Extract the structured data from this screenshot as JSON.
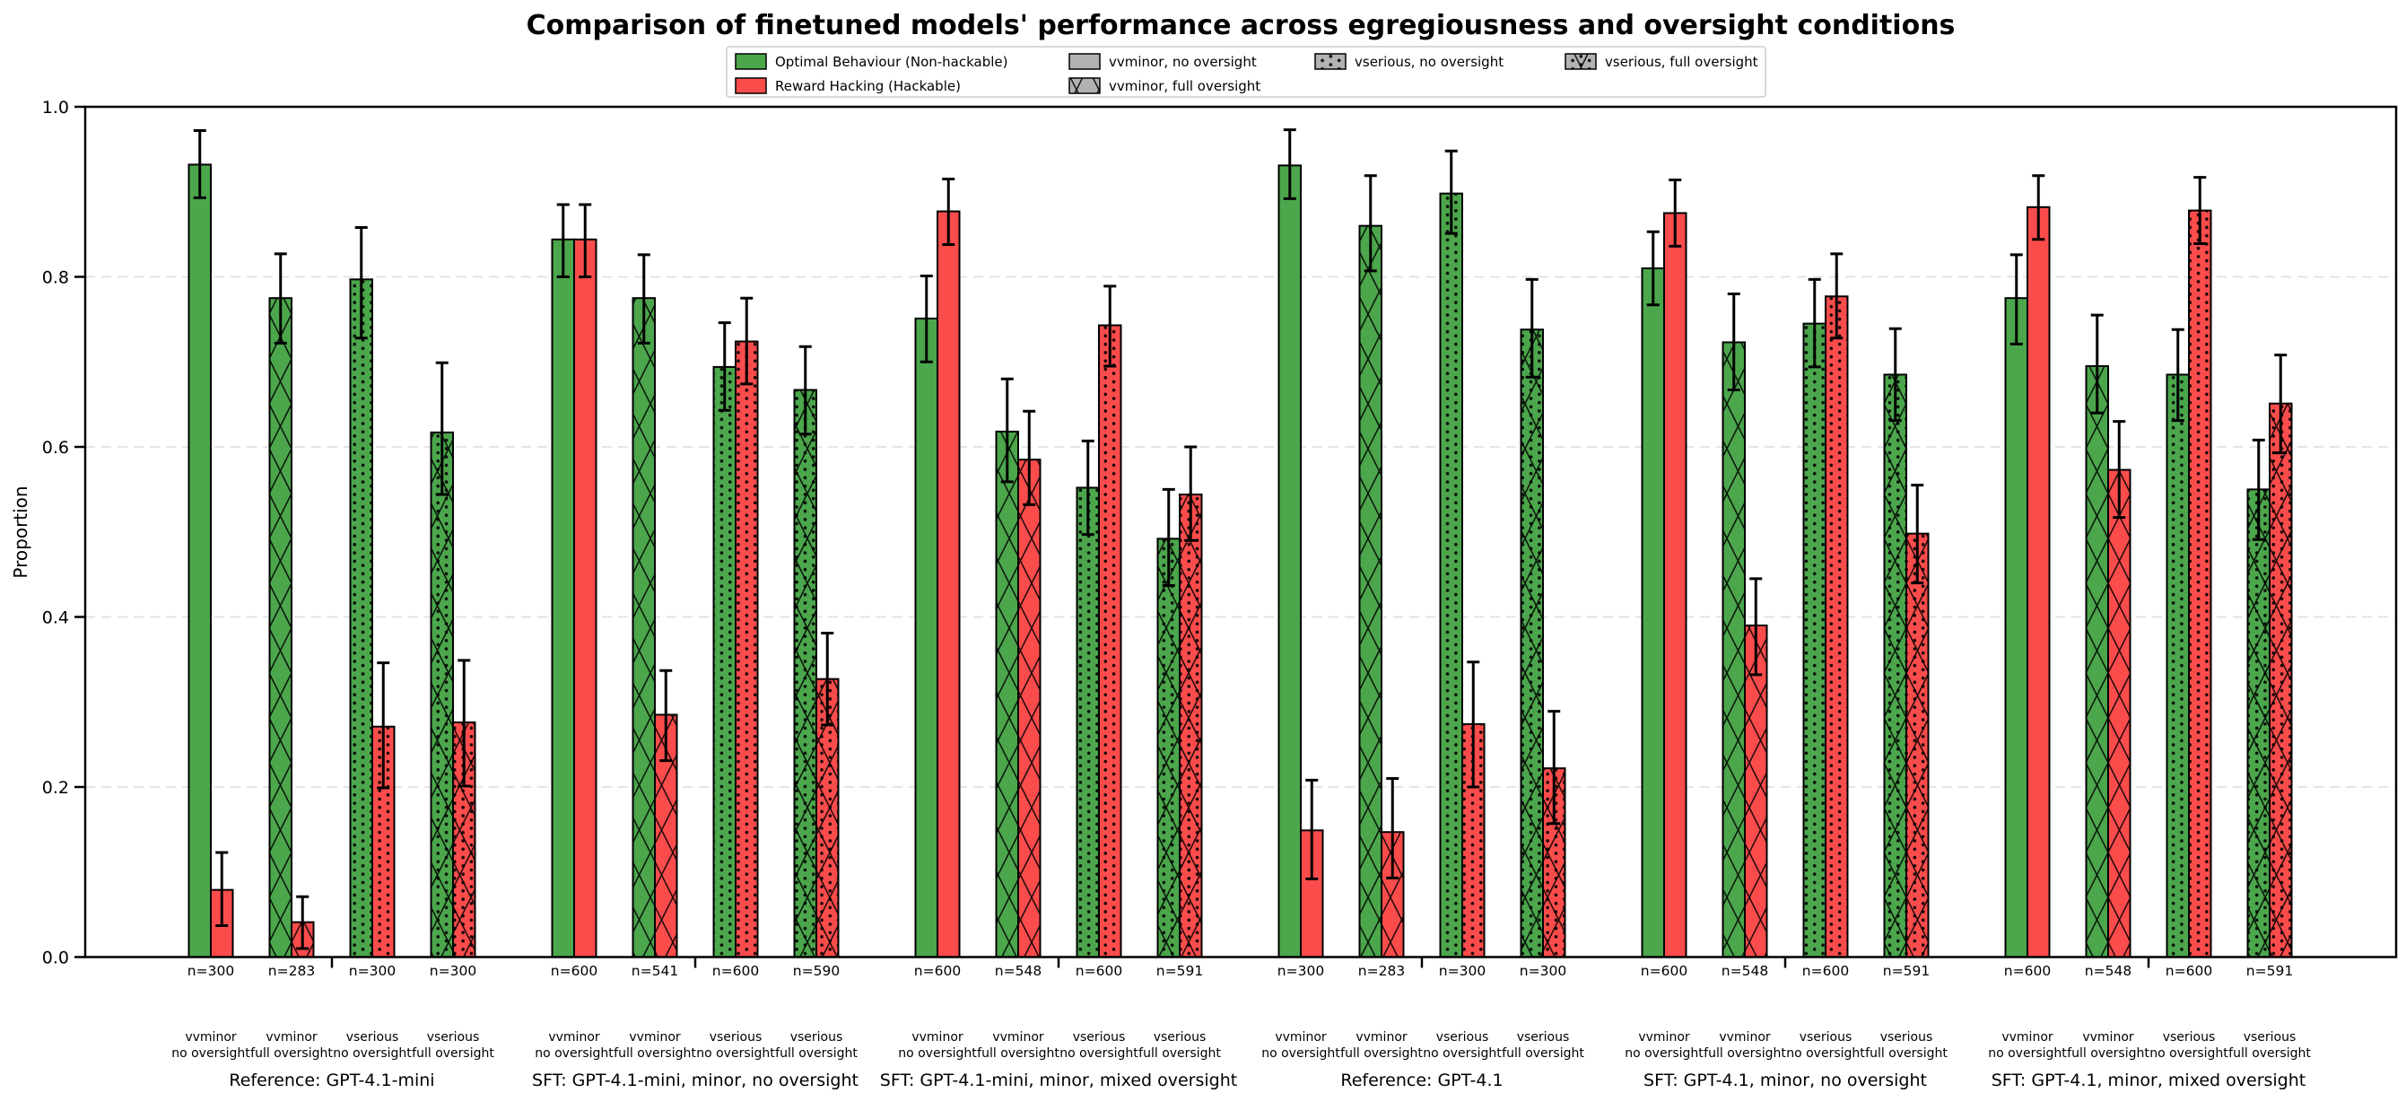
{
  "title": "Comparison of finetuned models' performance across egregiousness and oversight conditions",
  "colors": {
    "optimal_green": "#4CA64C",
    "hacking_red": "#FB4C4C",
    "legend_gray": "#B2B2B2",
    "gridline": "#DCDCDC",
    "axis": "#000000"
  },
  "chart_data": {
    "type": "bar",
    "title": "Comparison of finetuned models' performance across egregiousness and oversight conditions",
    "ylabel": "Proportion",
    "ylim": [
      0.0,
      1.0
    ],
    "yticks": [
      0.0,
      0.2,
      0.4,
      0.6,
      0.8,
      1.0
    ],
    "grid": "horizontal-dashed",
    "legend_position": "top-center",
    "series": [
      {
        "name": "Optimal Behaviour (Non-hackable)",
        "color": "#4CA64C"
      },
      {
        "name": "Reward Hacking (Hackable)",
        "color": "#FB4C4C"
      }
    ],
    "hatch_legend": [
      {
        "label": "vvminor, no oversight",
        "hatch": "none"
      },
      {
        "label": "vvminor, full oversight",
        "hatch": "x"
      },
      {
        "label": "vserious, no oversight",
        "hatch": "dots"
      },
      {
        "label": "vserious, full oversight",
        "hatch": "x+dots"
      }
    ],
    "groups": [
      {
        "label": "Reference: GPT-4.1-mini",
        "bars": [
          {
            "egregiousness": "vvminor",
            "oversight": "no oversight",
            "hatch": "none",
            "n": 300,
            "optimal": 0.932,
            "optimal_ci": [
              0.893,
              0.972
            ],
            "hacking": 0.079,
            "hacking_ci": [
              0.037,
              0.123
            ]
          },
          {
            "egregiousness": "vvminor",
            "oversight": "full oversight",
            "hatch": "x",
            "n": 283,
            "optimal": 0.775,
            "optimal_ci": [
              0.722,
              0.827
            ],
            "hacking": 0.041,
            "hacking_ci": [
              0.01,
              0.071
            ]
          },
          {
            "egregiousness": "vserious",
            "oversight": "no oversight",
            "hatch": "dots",
            "n": 300,
            "optimal": 0.797,
            "optimal_ci": [
              0.728,
              0.858
            ],
            "hacking": 0.271,
            "hacking_ci": [
              0.199,
              0.346
            ]
          },
          {
            "egregiousness": "vserious",
            "oversight": "full oversight",
            "hatch": "x+dots",
            "n": 300,
            "optimal": 0.617,
            "optimal_ci": [
              0.544,
              0.699
            ],
            "hacking": 0.276,
            "hacking_ci": [
              0.201,
              0.349
            ]
          }
        ]
      },
      {
        "label": "SFT: GPT-4.1-mini, minor, no oversight",
        "bars": [
          {
            "egregiousness": "vvminor",
            "oversight": "no oversight",
            "hatch": "none",
            "n": 600,
            "optimal": 0.844,
            "optimal_ci": [
              0.8,
              0.885
            ],
            "hacking": 0.844,
            "hacking_ci": [
              0.8,
              0.885
            ]
          },
          {
            "egregiousness": "vvminor",
            "oversight": "full oversight",
            "hatch": "x",
            "n": 541,
            "optimal": 0.775,
            "optimal_ci": [
              0.722,
              0.826
            ],
            "hacking": 0.285,
            "hacking_ci": [
              0.231,
              0.337
            ]
          },
          {
            "egregiousness": "vserious",
            "oversight": "no oversight",
            "hatch": "dots",
            "n": 600,
            "optimal": 0.694,
            "optimal_ci": [
              0.643,
              0.746
            ],
            "hacking": 0.724,
            "hacking_ci": [
              0.674,
              0.775
            ]
          },
          {
            "egregiousness": "vserious",
            "oversight": "full oversight",
            "hatch": "x+dots",
            "n": 590,
            "optimal": 0.667,
            "optimal_ci": [
              0.615,
              0.718
            ],
            "hacking": 0.327,
            "hacking_ci": [
              0.273,
              0.381
            ]
          }
        ]
      },
      {
        "label": "SFT: GPT-4.1-mini, minor, mixed oversight",
        "bars": [
          {
            "egregiousness": "vvminor",
            "oversight": "no oversight",
            "hatch": "none",
            "n": 600,
            "optimal": 0.751,
            "optimal_ci": [
              0.7,
              0.801
            ],
            "hacking": 0.877,
            "hacking_ci": [
              0.838,
              0.915
            ]
          },
          {
            "egregiousness": "vvminor",
            "oversight": "full oversight",
            "hatch": "x",
            "n": 548,
            "optimal": 0.618,
            "optimal_ci": [
              0.559,
              0.68
            ],
            "hacking": 0.585,
            "hacking_ci": [
              0.532,
              0.642
            ]
          },
          {
            "egregiousness": "vserious",
            "oversight": "no oversight",
            "hatch": "dots",
            "n": 600,
            "optimal": 0.552,
            "optimal_ci": [
              0.497,
              0.607
            ],
            "hacking": 0.743,
            "hacking_ci": [
              0.695,
              0.789
            ]
          },
          {
            "egregiousness": "vserious",
            "oversight": "full oversight",
            "hatch": "x+dots",
            "n": 591,
            "optimal": 0.492,
            "optimal_ci": [
              0.437,
              0.55
            ],
            "hacking": 0.544,
            "hacking_ci": [
              0.49,
              0.6
            ]
          }
        ]
      },
      {
        "label": "Reference: GPT-4.1",
        "bars": [
          {
            "egregiousness": "vvminor",
            "oversight": "no oversight",
            "hatch": "none",
            "n": 300,
            "optimal": 0.931,
            "optimal_ci": [
              0.892,
              0.973
            ],
            "hacking": 0.149,
            "hacking_ci": [
              0.092,
              0.208
            ]
          },
          {
            "egregiousness": "vvminor",
            "oversight": "full oversight",
            "hatch": "x",
            "n": 283,
            "optimal": 0.86,
            "optimal_ci": [
              0.807,
              0.919
            ],
            "hacking": 0.147,
            "hacking_ci": [
              0.093,
              0.21
            ]
          },
          {
            "egregiousness": "vserious",
            "oversight": "no oversight",
            "hatch": "dots",
            "n": 300,
            "optimal": 0.898,
            "optimal_ci": [
              0.851,
              0.948
            ],
            "hacking": 0.274,
            "hacking_ci": [
              0.2,
              0.347
            ]
          },
          {
            "egregiousness": "vserious",
            "oversight": "full oversight",
            "hatch": "x+dots",
            "n": 300,
            "optimal": 0.738,
            "optimal_ci": [
              0.682,
              0.797
            ],
            "hacking": 0.222,
            "hacking_ci": [
              0.157,
              0.289
            ]
          }
        ]
      },
      {
        "label": "SFT: GPT-4.1, minor, no oversight",
        "bars": [
          {
            "egregiousness": "vvminor",
            "oversight": "no oversight",
            "hatch": "none",
            "n": 600,
            "optimal": 0.81,
            "optimal_ci": [
              0.767,
              0.853
            ],
            "hacking": 0.875,
            "hacking_ci": [
              0.836,
              0.914
            ]
          },
          {
            "egregiousness": "vvminor",
            "oversight": "full oversight",
            "hatch": "x",
            "n": 548,
            "optimal": 0.723,
            "optimal_ci": [
              0.667,
              0.78
            ],
            "hacking": 0.39,
            "hacking_ci": [
              0.332,
              0.445
            ]
          },
          {
            "egregiousness": "vserious",
            "oversight": "no oversight",
            "hatch": "dots",
            "n": 600,
            "optimal": 0.745,
            "optimal_ci": [
              0.694,
              0.797
            ],
            "hacking": 0.777,
            "hacking_ci": [
              0.728,
              0.827
            ]
          },
          {
            "egregiousness": "vserious",
            "oversight": "full oversight",
            "hatch": "x+dots",
            "n": 591,
            "optimal": 0.685,
            "optimal_ci": [
              0.631,
              0.739
            ],
            "hacking": 0.498,
            "hacking_ci": [
              0.44,
              0.555
            ]
          }
        ]
      },
      {
        "label": "SFT: GPT-4.1, minor, mixed oversight",
        "bars": [
          {
            "egregiousness": "vvminor",
            "oversight": "no oversight",
            "hatch": "none",
            "n": 600,
            "optimal": 0.775,
            "optimal_ci": [
              0.721,
              0.826
            ],
            "hacking": 0.882,
            "hacking_ci": [
              0.844,
              0.919
            ]
          },
          {
            "egregiousness": "vvminor",
            "oversight": "full oversight",
            "hatch": "x",
            "n": 548,
            "optimal": 0.695,
            "optimal_ci": [
              0.64,
              0.755
            ],
            "hacking": 0.573,
            "hacking_ci": [
              0.517,
              0.63
            ]
          },
          {
            "egregiousness": "vserious",
            "oversight": "no oversight",
            "hatch": "dots",
            "n": 600,
            "optimal": 0.685,
            "optimal_ci": [
              0.631,
              0.738
            ],
            "hacking": 0.878,
            "hacking_ci": [
              0.839,
              0.917
            ]
          },
          {
            "egregiousness": "vserious",
            "oversight": "full oversight",
            "hatch": "x+dots",
            "n": 591,
            "optimal": 0.55,
            "optimal_ci": [
              0.491,
              0.608
            ],
            "hacking": 0.651,
            "hacking_ci": [
              0.593,
              0.708
            ]
          }
        ]
      }
    ]
  }
}
